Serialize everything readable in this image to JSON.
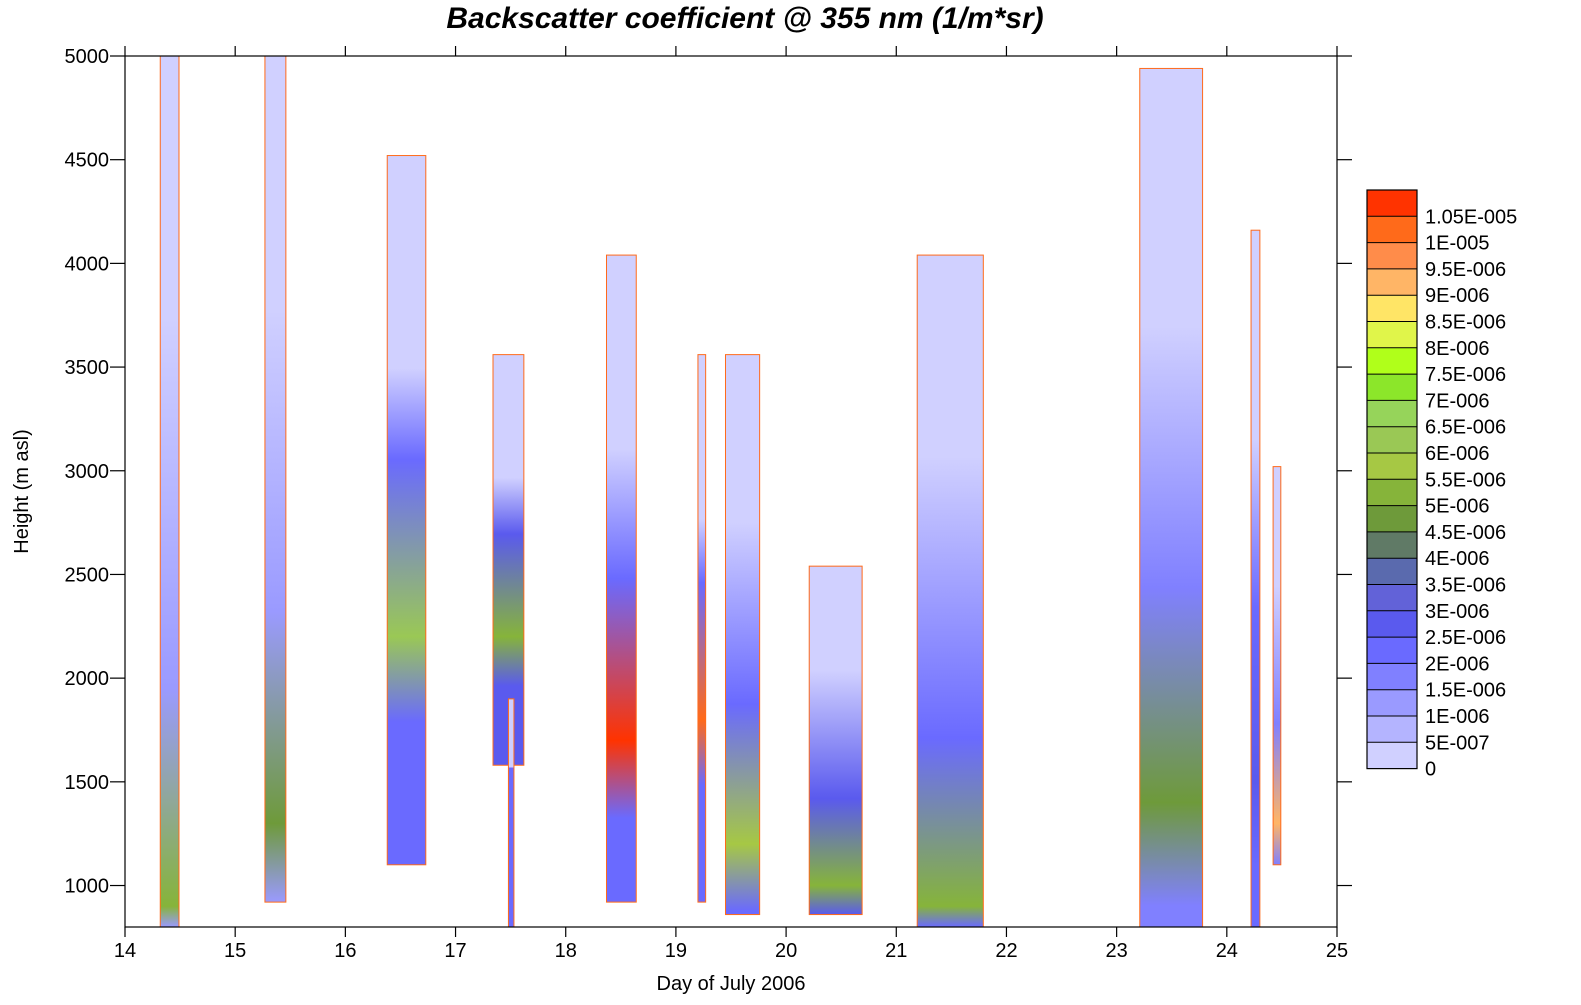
{
  "title": "Backscatter coefficient @ 355 nm (1/m*sr)",
  "chart_data": {
    "type": "heatmap",
    "title": "Backscatter coefficient @ 355 nm (1/m*sr)",
    "xlabel": "Day of July 2006",
    "ylabel": "Height (m asl)",
    "xlim": [
      14,
      25
    ],
    "ylim": [
      800,
      5000
    ],
    "x_ticks": [
      14,
      15,
      16,
      17,
      18,
      19,
      20,
      21,
      22,
      23,
      24,
      25
    ],
    "y_ticks": [
      1000,
      1500,
      2000,
      2500,
      3000,
      3500,
      4000,
      4500,
      5000
    ],
    "grid": false,
    "legend_position": "right",
    "colorbar": {
      "levels": [
        "1.05E-005",
        "1E-005",
        "9.5E-006",
        "9E-006",
        "8.5E-006",
        "8E-006",
        "7.5E-006",
        "7E-006",
        "6.5E-006",
        "6E-006",
        "5.5E-006",
        "5E-006",
        "4.5E-006",
        "4E-006",
        "3.5E-006",
        "3E-006",
        "2.5E-006",
        "2E-006",
        "1.5E-006",
        "1E-006",
        "5E-007",
        "0"
      ],
      "colors": [
        "#ff3300",
        "#ff6a1a",
        "#ff8c4a",
        "#ffb566",
        "#ffe566",
        "#e0f54a",
        "#b0ff1a",
        "#8ce62a",
        "#96d45a",
        "#9ac855",
        "#a6c844",
        "#86b43a",
        "#6e9a3a",
        "#607a66",
        "#5a6aae",
        "#6262d8",
        "#5a5aee",
        "#6a6aff",
        "#8080ff",
        "#9a9aff",
        "#b4b4ff",
        "#d0d0ff"
      ]
    },
    "profiles": [
      {
        "start": 14.32,
        "end": 14.49,
        "top": 5000,
        "bottom": 800,
        "base_level": "1E-006",
        "peak_level": "5E-006",
        "peak_height": 900
      },
      {
        "start": 15.27,
        "end": 15.46,
        "top": 5000,
        "bottom": 920,
        "base_level": "1E-006",
        "peak_level": "4.5E-006",
        "peak_height": 1300
      },
      {
        "start": 16.38,
        "end": 16.73,
        "top": 4520,
        "bottom": 1100,
        "base_level": "2E-006",
        "peak_level": "6E-006",
        "peak_height": 2200
      },
      {
        "start": 17.34,
        "end": 17.62,
        "top": 3560,
        "bottom": 1580,
        "base_level": "2.5E-006",
        "peak_level": "5E-006",
        "peak_height": 2200
      },
      {
        "start": 17.48,
        "end": 17.53,
        "top": 1900,
        "bottom": 800,
        "base_level": "2E-006",
        "peak_level": "2E-006",
        "peak_height": 1500
      },
      {
        "start": 18.37,
        "end": 18.64,
        "top": 4040,
        "bottom": 920,
        "base_level": "2E-006",
        "peak_level": "1.05E-005",
        "peak_height": 1700
      },
      {
        "start": 19.2,
        "end": 19.27,
        "top": 3560,
        "bottom": 920,
        "base_level": "2E-006",
        "peak_level": "1E-005",
        "peak_height": 1800
      },
      {
        "start": 19.45,
        "end": 19.76,
        "top": 3560,
        "bottom": 860,
        "base_level": "2E-006",
        "peak_level": "5.5E-006",
        "peak_height": 1200
      },
      {
        "start": 20.21,
        "end": 20.69,
        "top": 2540,
        "bottom": 860,
        "base_level": "2.5E-006",
        "peak_level": "5E-006",
        "peak_height": 1000
      },
      {
        "start": 21.19,
        "end": 21.79,
        "top": 4040,
        "bottom": 800,
        "base_level": "2E-006",
        "peak_level": "5E-006",
        "peak_height": 900
      },
      {
        "start": 23.21,
        "end": 23.78,
        "top": 4940,
        "bottom": 800,
        "base_level": "1.5E-006",
        "peak_level": "4.5E-006",
        "peak_height": 1400
      },
      {
        "start": 24.22,
        "end": 24.3,
        "top": 4160,
        "bottom": 800,
        "base_level": "2E-006",
        "peak_level": "2.5E-006",
        "peak_height": 1500
      },
      {
        "start": 24.42,
        "end": 24.49,
        "top": 3020,
        "bottom": 1100,
        "base_level": "1.5E-006",
        "peak_level": "9E-006",
        "peak_height": 1300
      }
    ]
  }
}
